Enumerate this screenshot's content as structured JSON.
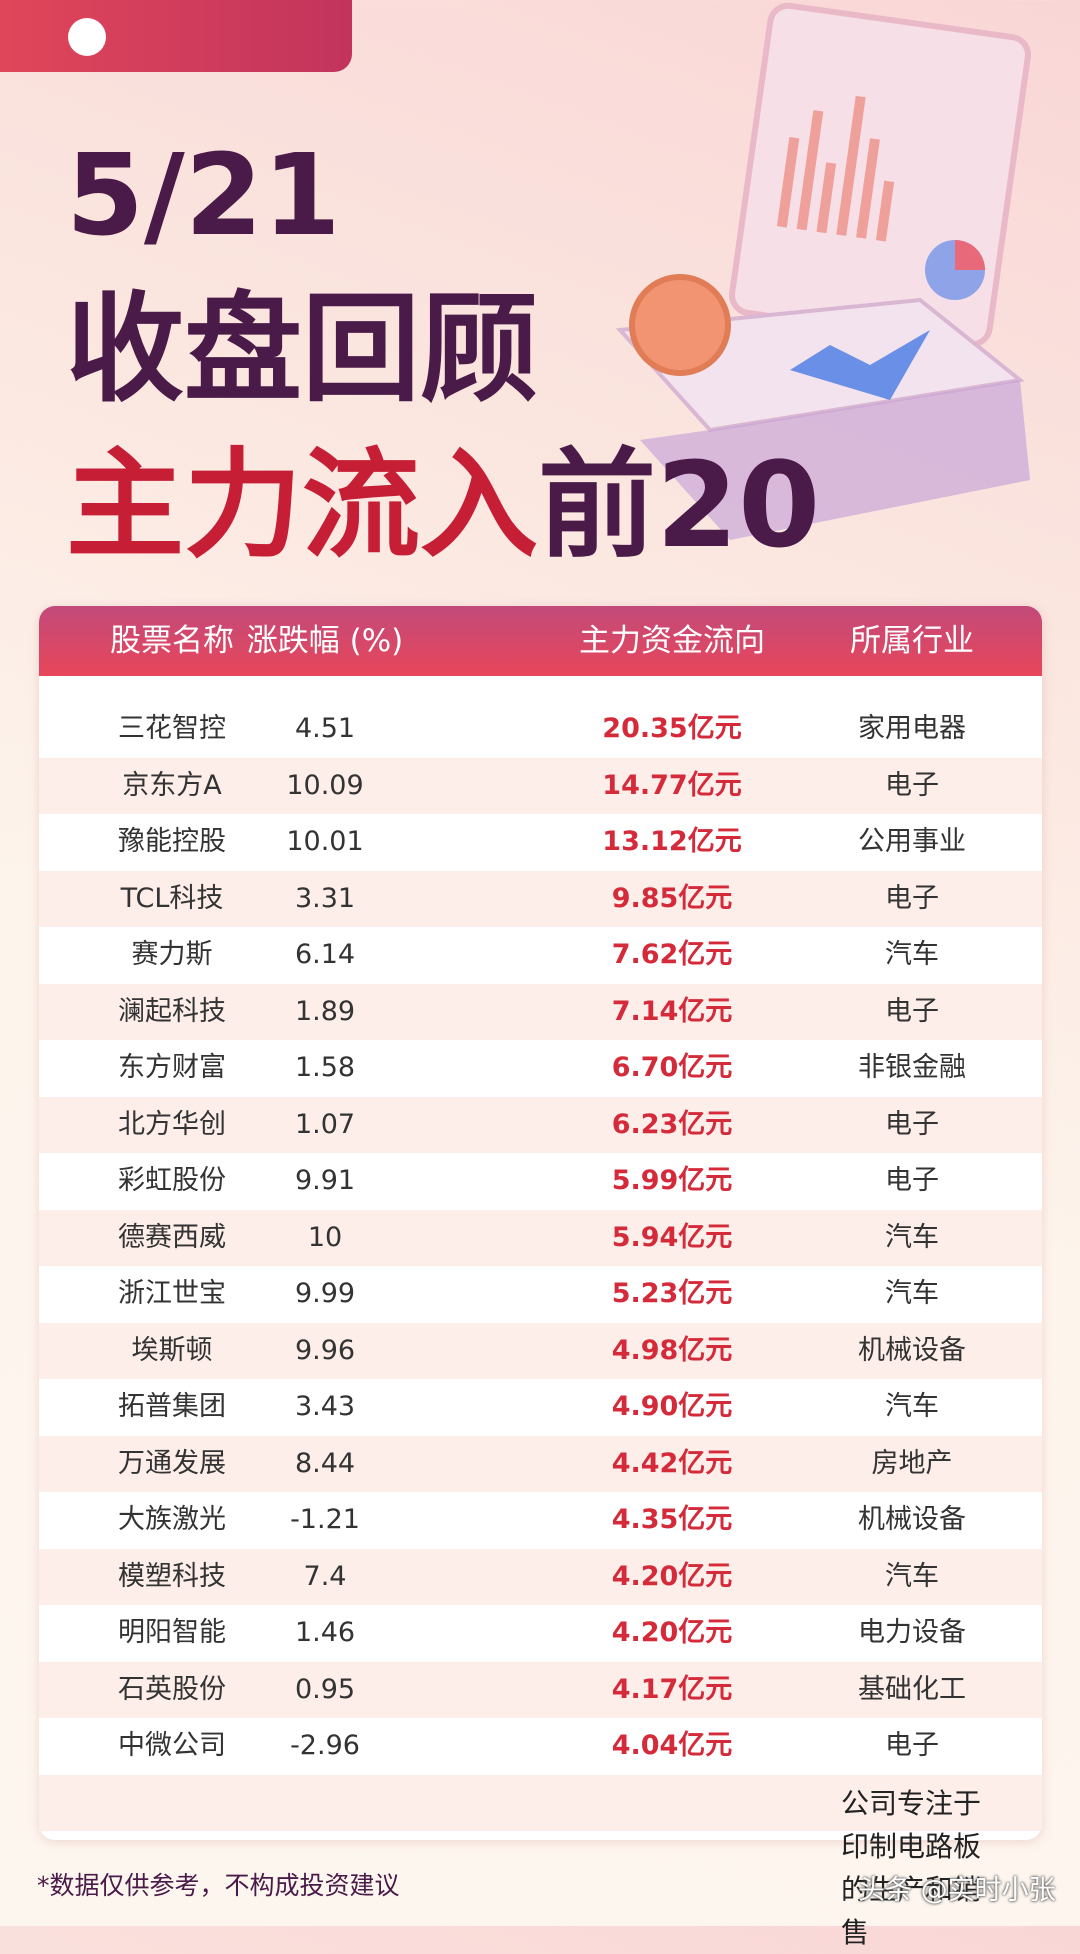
{
  "header": {
    "date": "5/21",
    "title": "收盘回顾",
    "subtitle_red": "主力流入",
    "subtitle_purple": "前20"
  },
  "table": {
    "columns": [
      "股票名称",
      "涨跌幅 (%)",
      "主力资金流向",
      "所属行业"
    ],
    "rows": [
      [
        "三花智控",
        "4.51",
        "20.35亿元",
        "家用电器"
      ],
      [
        "京东方A",
        "10.09",
        "14.77亿元",
        "电子"
      ],
      [
        "豫能控股",
        "10.01",
        "13.12亿元",
        "公用事业"
      ],
      [
        "TCL科技",
        "3.31",
        "9.85亿元",
        "电子"
      ],
      [
        "赛力斯",
        "6.14",
        "7.62亿元",
        "汽车"
      ],
      [
        "澜起科技",
        "1.89",
        "7.14亿元",
        "电子"
      ],
      [
        "东方财富",
        "1.58",
        "6.70亿元",
        "非银金融"
      ],
      [
        "北方华创",
        "1.07",
        "6.23亿元",
        "电子"
      ],
      [
        "彩虹股份",
        "9.91",
        "5.99亿元",
        "电子"
      ],
      [
        "德赛西威",
        "10",
        "5.94亿元",
        "汽车"
      ],
      [
        "浙江世宝",
        "9.99",
        "5.23亿元",
        "汽车"
      ],
      [
        "埃斯顿",
        "9.96",
        "4.98亿元",
        "机械设备"
      ],
      [
        "拓普集团",
        "3.43",
        "4.90亿元",
        "汽车"
      ],
      [
        "万通发展",
        "8.44",
        "4.42亿元",
        "房地产"
      ],
      [
        "大族激光",
        "-1.21",
        "4.35亿元",
        "机械设备"
      ],
      [
        "模塑科技",
        "7.4",
        "4.20亿元",
        "汽车"
      ],
      [
        "明阳智能",
        "1.46",
        "4.20亿元",
        "电力设备"
      ],
      [
        "石英股份",
        "0.95",
        "4.17亿元",
        "基础化工"
      ],
      [
        "中微公司",
        "-2.96",
        "4.04亿元",
        "电子"
      ]
    ],
    "extra_row": {
      "industry": "公司专注于印制电路板的生产和销售"
    }
  },
  "footer": {
    "disclaimer": "*数据仅供参考，不构成投资建议",
    "watermark": "头条 @实时小张"
  }
}
